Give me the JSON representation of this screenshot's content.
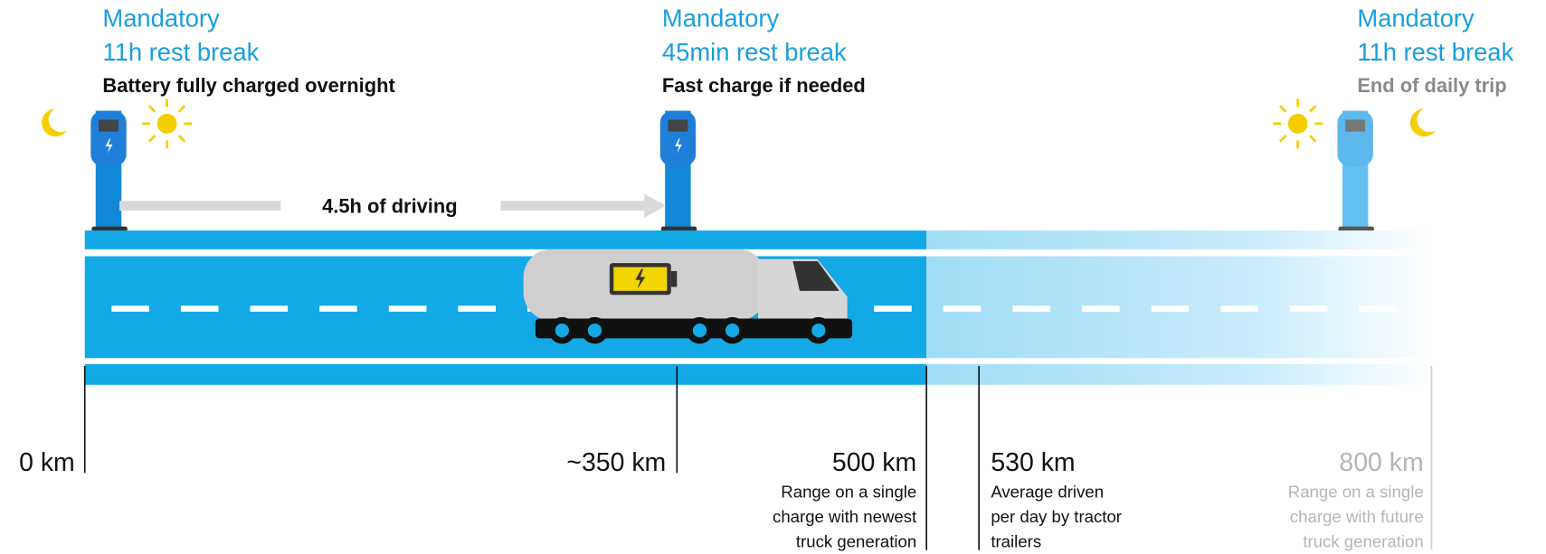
{
  "stops": [
    {
      "title": "Mandatory",
      "subtitle": "11h rest break",
      "note": "Battery fully charged overnight"
    },
    {
      "title": "Mandatory",
      "subtitle": "45min rest break",
      "note": "Fast charge if needed"
    },
    {
      "title": "Mandatory",
      "subtitle": "11h rest break",
      "note": "End of daily trip"
    }
  ],
  "driving_label": "4.5h of driving",
  "markers": [
    {
      "label": "0 km"
    },
    {
      "label": "~350 km"
    },
    {
      "label": "500 km",
      "description": [
        "Range on a single",
        "charge with newest",
        "truck generation"
      ]
    },
    {
      "label": "530 km",
      "description": [
        "Average driven",
        "per day by tractor",
        "trailers"
      ]
    },
    {
      "label": "800 km",
      "description": [
        "Range on a single",
        "charge with future",
        "truck generation"
      ]
    }
  ]
}
